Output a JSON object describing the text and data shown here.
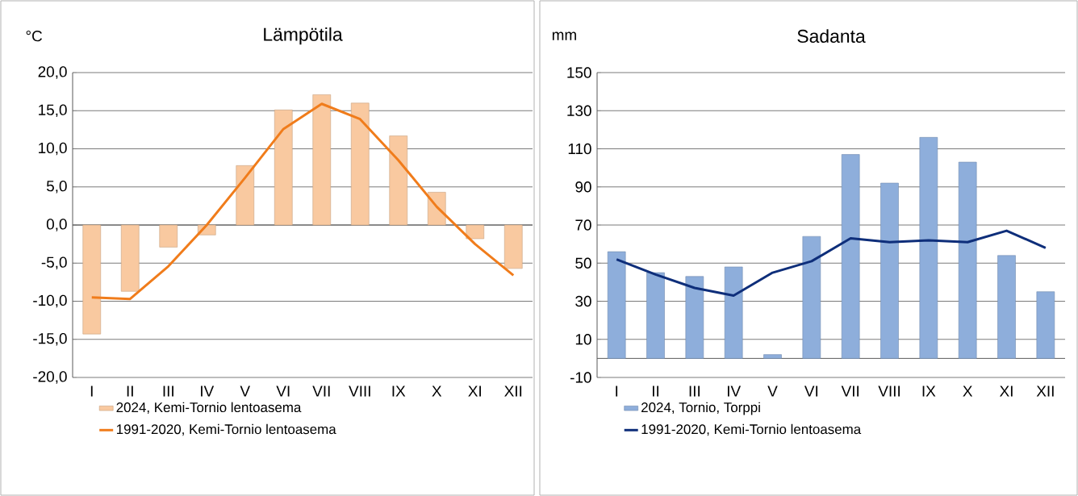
{
  "chart_data": [
    {
      "type": "bar",
      "title": "Lämpötila",
      "ylabel": "°C",
      "categories": [
        "I",
        "II",
        "III",
        "IV",
        "V",
        "VI",
        "VII",
        "VIII",
        "IX",
        "X",
        "XI",
        "XII"
      ],
      "series": [
        {
          "name": "2024, Kemi-Tornio lentoasema",
          "type": "bar",
          "color": "#f9c9a0",
          "values": [
            -14.3,
            -8.7,
            -2.9,
            -1.3,
            7.8,
            15.1,
            17.1,
            16.0,
            11.7,
            4.3,
            -1.8,
            -5.7
          ]
        },
        {
          "name": "1991-2020, Kemi-Tornio lentoasema",
          "type": "line",
          "color": "#f07c1b",
          "values": [
            -9.5,
            -9.7,
            -5.4,
            0.0,
            6.2,
            12.6,
            15.9,
            13.9,
            8.5,
            2.4,
            -2.5,
            -6.6
          ]
        }
      ],
      "ylim": [
        -20,
        20
      ],
      "yticks": [
        {
          "value": -20,
          "label": "-20,0"
        },
        {
          "value": -15,
          "label": "-15,0"
        },
        {
          "value": -10,
          "label": "-10,0"
        },
        {
          "value": -5,
          "label": "-5,0"
        },
        {
          "value": 0,
          "label": "0,0"
        },
        {
          "value": 5,
          "label": "5,0"
        },
        {
          "value": 10,
          "label": "10,0"
        },
        {
          "value": 15,
          "label": "15,0"
        },
        {
          "value": 20,
          "label": "20,0"
        }
      ],
      "grid": "y",
      "legend": "bottom"
    },
    {
      "type": "bar",
      "title": "Sadanta",
      "ylabel": "mm",
      "categories": [
        "I",
        "II",
        "III",
        "IV",
        "V",
        "VI",
        "VII",
        "VIII",
        "IX",
        "X",
        "XI",
        "XII"
      ],
      "series": [
        {
          "name": "2024, Tornio, Torppi",
          "type": "bar",
          "color": "#8eaedb",
          "values": [
            56,
            45,
            43,
            48,
            2,
            64,
            107,
            92,
            116,
            103,
            54,
            35
          ]
        },
        {
          "name": "1991-2020, Kemi-Tornio lentoasema",
          "type": "line",
          "color": "#0e2e7a",
          "values": [
            52,
            44,
            37,
            33,
            45,
            51,
            63,
            61,
            62,
            61,
            67,
            58
          ]
        }
      ],
      "ylim": [
        -10,
        150
      ],
      "yticks": [
        -10,
        10,
        30,
        50,
        70,
        90,
        110,
        130,
        150
      ],
      "grid": "y",
      "legend": "bottom"
    }
  ]
}
